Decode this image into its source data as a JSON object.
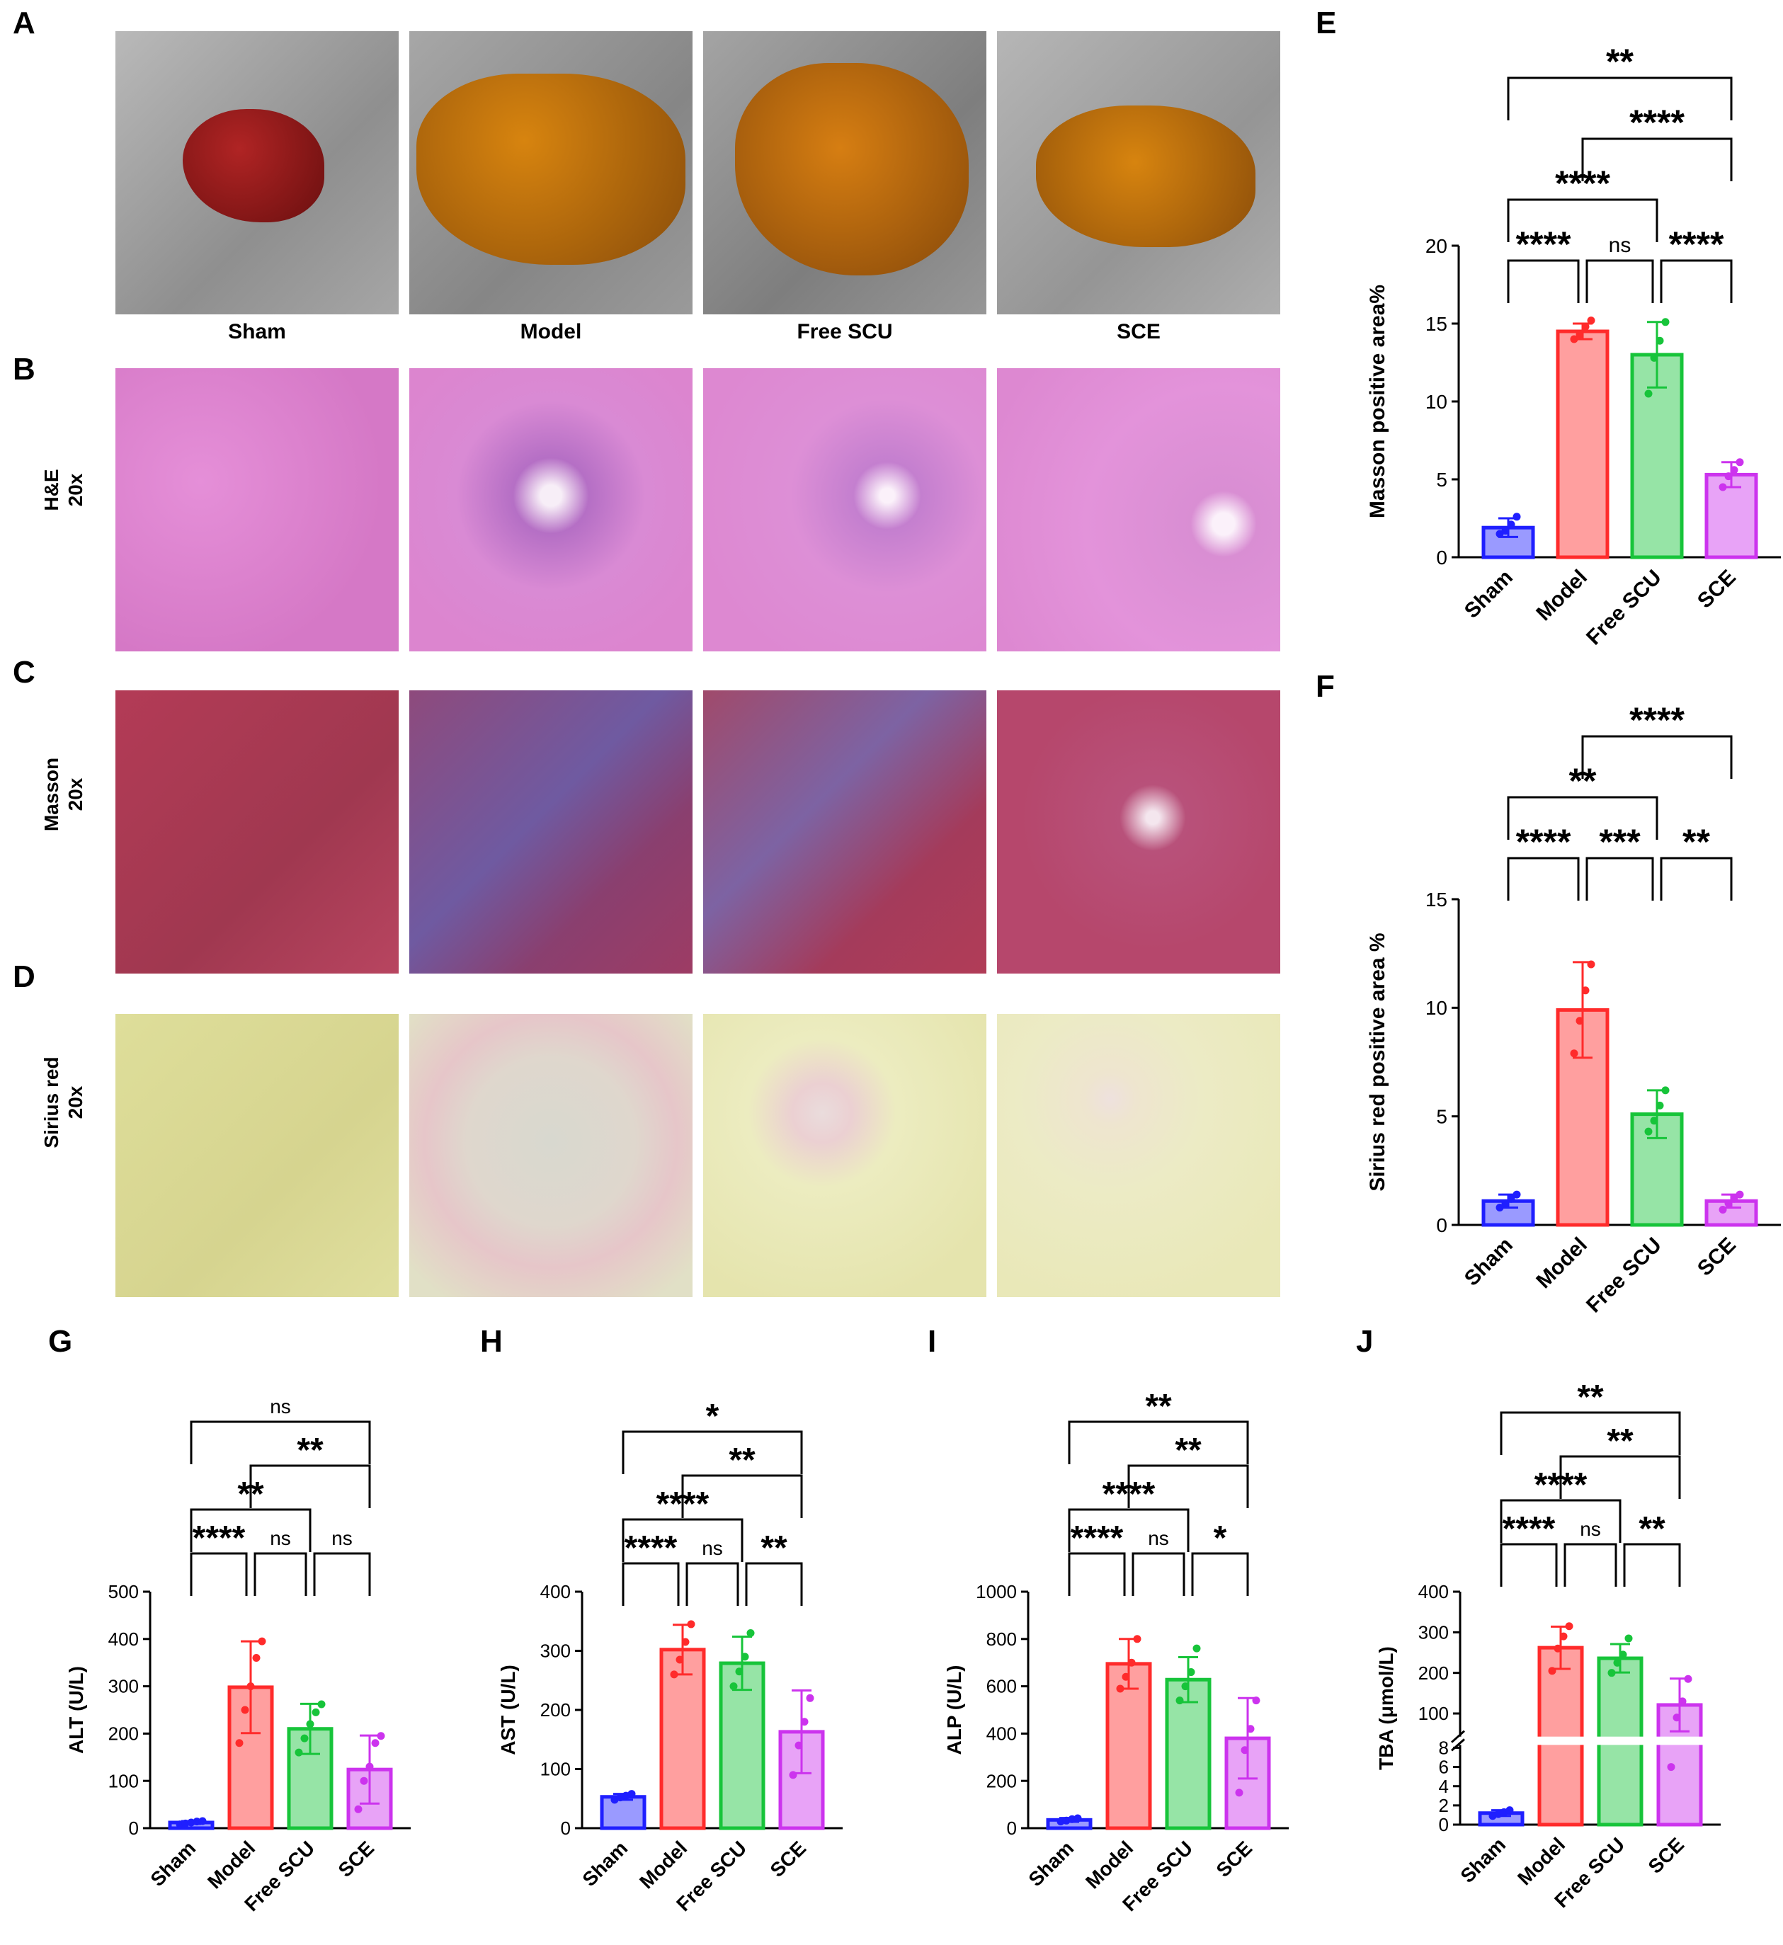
{
  "panels": {
    "A": "A",
    "B": "B",
    "C": "C",
    "D": "D",
    "E": "E",
    "F": "F",
    "G": "G",
    "H": "H",
    "I": "I",
    "J": "J"
  },
  "groups": [
    "Sham",
    "Model",
    "Free SCU",
    "SCE"
  ],
  "row_labels": {
    "he": [
      "H&E",
      "20x"
    ],
    "masson": [
      "Masson",
      "20x"
    ],
    "sirius": [
      "Sirius  red",
      "20x"
    ]
  },
  "colors": {
    "sham": "#1f1fff",
    "model": "#ff2b2b",
    "freescu": "#17c43a",
    "sce": "#cc33ee"
  },
  "chart_data": [
    {
      "id": "E",
      "type": "bar",
      "ylabel": "Masson positive area%",
      "categories": [
        "Sham",
        "Model",
        "Free SCU",
        "SCE"
      ],
      "values": [
        1.9,
        14.5,
        13.0,
        5.3
      ],
      "errors": [
        0.6,
        0.5,
        2.1,
        0.8
      ],
      "points": [
        [
          1.5,
          1.7,
          2.1,
          2.6
        ],
        [
          14.0,
          14.3,
          14.8,
          15.2
        ],
        [
          10.5,
          12.8,
          13.9,
          15.1
        ],
        [
          4.5,
          5.2,
          5.6,
          6.1
        ]
      ],
      "ylim": [
        0,
        20
      ],
      "yticks": [
        "0",
        "5",
        "10",
        "15",
        "20"
      ],
      "comparisons": [
        {
          "a": 0,
          "b": 3,
          "label": "**"
        },
        {
          "a": 1,
          "b": 3,
          "label": "****"
        },
        {
          "a": 0,
          "b": 2,
          "label": "****"
        },
        {
          "a": 0,
          "b": 1,
          "label": "****"
        },
        {
          "a": 1,
          "b": 2,
          "label": "ns"
        },
        {
          "a": 2,
          "b": 3,
          "label": "****"
        }
      ]
    },
    {
      "id": "F",
      "type": "bar",
      "ylabel": "Sirius red positive area %",
      "categories": [
        "Sham",
        "Model",
        "Free SCU",
        "SCE"
      ],
      "values": [
        1.1,
        9.9,
        5.1,
        1.1
      ],
      "errors": [
        0.3,
        2.2,
        1.1,
        0.3
      ],
      "points": [
        [
          0.8,
          1.0,
          1.2,
          1.4
        ],
        [
          7.9,
          9.4,
          10.8,
          12.0
        ],
        [
          4.3,
          4.8,
          5.5,
          6.2
        ],
        [
          0.7,
          1.0,
          1.2,
          1.4
        ]
      ],
      "ylim": [
        0,
        15
      ],
      "yticks": [
        "0",
        "5",
        "10",
        "15"
      ],
      "comparisons": [
        {
          "a": 1,
          "b": 3,
          "label": "****"
        },
        {
          "a": 0,
          "b": 2,
          "label": "**"
        },
        {
          "a": 1,
          "b": 2,
          "label": "***"
        },
        {
          "a": 0,
          "b": 1,
          "label": "****"
        },
        {
          "a": 2,
          "b": 3,
          "label": "**"
        }
      ]
    },
    {
      "id": "G",
      "type": "bar",
      "ylabel": "ALT (U/L)",
      "categories": [
        "Sham",
        "Model",
        "Free SCU",
        "SCE"
      ],
      "values": [
        12,
        298,
        210,
        124
      ],
      "errors": [
        3,
        97,
        53,
        72
      ],
      "points": [
        [
          8,
          10,
          12,
          14,
          15
        ],
        [
          180,
          250,
          300,
          360,
          395
        ],
        [
          160,
          190,
          220,
          245,
          262
        ],
        [
          40,
          100,
          130,
          180,
          195
        ]
      ],
      "ylim": [
        0,
        500
      ],
      "yticks": [
        "0",
        "100",
        "200",
        "300",
        "400",
        "500"
      ],
      "comparisons": [
        {
          "a": 0,
          "b": 3,
          "label": "ns"
        },
        {
          "a": 1,
          "b": 3,
          "label": "**"
        },
        {
          "a": 0,
          "b": 2,
          "label": "**"
        },
        {
          "a": 0,
          "b": 1,
          "label": "****"
        },
        {
          "a": 1,
          "b": 2,
          "label": "ns"
        },
        {
          "a": 2,
          "b": 3,
          "label": "ns"
        }
      ]
    },
    {
      "id": "H",
      "type": "bar",
      "ylabel": "AST (U/L)",
      "categories": [
        "Sham",
        "Model",
        "Free SCU",
        "SCE"
      ],
      "values": [
        53,
        302,
        279,
        163
      ],
      "errors": [
        5,
        42,
        45,
        70
      ],
      "points": [
        [
          48,
          52,
          55,
          58
        ],
        [
          260,
          285,
          315,
          345
        ],
        [
          240,
          265,
          290,
          330
        ],
        [
          90,
          140,
          180,
          220
        ]
      ],
      "ylim": [
        0,
        400
      ],
      "yticks": [
        "0",
        "100",
        "200",
        "300",
        "400"
      ],
      "comparisons": [
        {
          "a": 0,
          "b": 3,
          "label": "*"
        },
        {
          "a": 1,
          "b": 3,
          "label": "**"
        },
        {
          "a": 0,
          "b": 2,
          "label": "****"
        },
        {
          "a": 0,
          "b": 1,
          "label": "****"
        },
        {
          "a": 1,
          "b": 2,
          "label": "ns"
        },
        {
          "a": 2,
          "b": 3,
          "label": "**"
        }
      ]
    },
    {
      "id": "I",
      "type": "bar",
      "ylabel": "ALP (U/L)",
      "categories": [
        "Sham",
        "Model",
        "Free SCU",
        "SCE"
      ],
      "values": [
        35,
        695,
        628,
        380
      ],
      "errors": [
        8,
        105,
        95,
        170
      ],
      "points": [
        [
          28,
          32,
          38,
          42
        ],
        [
          590,
          640,
          700,
          800
        ],
        [
          540,
          600,
          660,
          760
        ],
        [
          150,
          330,
          420,
          540
        ]
      ],
      "ylim": [
        0,
        1000
      ],
      "yticks": [
        "0",
        "200",
        "400",
        "600",
        "800",
        "1000"
      ],
      "comparisons": [
        {
          "a": 0,
          "b": 3,
          "label": "**"
        },
        {
          "a": 1,
          "b": 3,
          "label": "**"
        },
        {
          "a": 0,
          "b": 2,
          "label": "****"
        },
        {
          "a": 0,
          "b": 1,
          "label": "****"
        },
        {
          "a": 1,
          "b": 2,
          "label": "ns"
        },
        {
          "a": 2,
          "b": 3,
          "label": "*"
        }
      ]
    },
    {
      "id": "J",
      "type": "bar",
      "ylabel": "TBA (μmol/L)",
      "categories": [
        "Sham",
        "Model",
        "Free SCU",
        "SCE"
      ],
      "values": [
        1.2,
        262,
        236,
        121
      ],
      "errors": [
        0.3,
        52,
        35,
        65
      ],
      "points": [
        [
          0.9,
          1.1,
          1.3,
          1.5
        ],
        [
          205,
          260,
          290,
          315
        ],
        [
          200,
          225,
          245,
          285
        ],
        [
          6.0,
          90,
          130,
          185
        ]
      ],
      "ylim": [
        0,
        400
      ],
      "yticks": [
        "0",
        "2",
        "4",
        "6",
        "8",
        "100",
        "200",
        "300",
        "400"
      ],
      "axis_break": [
        8,
        50
      ],
      "comparisons": [
        {
          "a": 0,
          "b": 3,
          "label": "**"
        },
        {
          "a": 1,
          "b": 3,
          "label": "**"
        },
        {
          "a": 0,
          "b": 2,
          "label": "****"
        },
        {
          "a": 0,
          "b": 1,
          "label": "****"
        },
        {
          "a": 1,
          "b": 2,
          "label": "ns"
        },
        {
          "a": 2,
          "b": 3,
          "label": "**"
        }
      ]
    }
  ]
}
